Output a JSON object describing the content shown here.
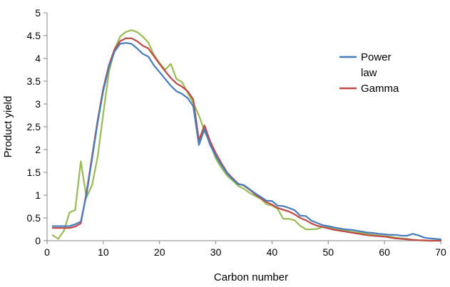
{
  "chart_data": {
    "type": "line",
    "title": "",
    "xlabel": "Carbon number",
    "ylabel": "Product yield",
    "xlim": [
      0,
      70
    ],
    "ylim": [
      0,
      5
    ],
    "x_ticks": [
      0,
      10,
      20,
      30,
      40,
      50,
      60,
      70
    ],
    "y_ticks": [
      0,
      0.5,
      1,
      1.5,
      2,
      2.5,
      3,
      3.5,
      4,
      4.5,
      5
    ],
    "grid": false,
    "legend_position": "right",
    "legend_entries": [
      {
        "name_lines": [
          "Power",
          "law"
        ],
        "color": "#4a7ebb"
      },
      {
        "name_lines": [
          "Gamma"
        ],
        "color": "#be4b48"
      }
    ],
    "series": [
      {
        "name": "Power law",
        "color": "#4a7ebb",
        "x": [
          1,
          2,
          3,
          4,
          5,
          6,
          7,
          8,
          9,
          10,
          11,
          12,
          13,
          14,
          15,
          16,
          17,
          18,
          19,
          20,
          21,
          22,
          23,
          24,
          25,
          26,
          27,
          28,
          29,
          30,
          31,
          32,
          33,
          34,
          35,
          36,
          37,
          38,
          39,
          40,
          41,
          42,
          43,
          44,
          45,
          46,
          47,
          48,
          49,
          50,
          51,
          52,
          53,
          54,
          55,
          56,
          57,
          58,
          59,
          60,
          61,
          62,
          63,
          64,
          65,
          66,
          67,
          68,
          69,
          70
        ],
        "y": [
          0.32,
          0.32,
          0.32,
          0.32,
          0.36,
          0.42,
          1.0,
          1.8,
          2.6,
          3.3,
          3.8,
          4.15,
          4.32,
          4.34,
          4.32,
          4.22,
          4.1,
          4.04,
          3.85,
          3.7,
          3.55,
          3.4,
          3.28,
          3.22,
          3.13,
          2.95,
          2.1,
          2.45,
          2.1,
          1.86,
          1.66,
          1.48,
          1.35,
          1.24,
          1.22,
          1.13,
          1.04,
          0.96,
          0.88,
          0.87,
          0.77,
          0.76,
          0.72,
          0.67,
          0.55,
          0.54,
          0.44,
          0.39,
          0.34,
          0.32,
          0.29,
          0.27,
          0.25,
          0.24,
          0.22,
          0.2,
          0.18,
          0.17,
          0.15,
          0.14,
          0.13,
          0.13,
          0.11,
          0.11,
          0.15,
          0.12,
          0.07,
          0.05,
          0.04,
          0.03
        ]
      },
      {
        "name": "Gamma",
        "color": "#be4b48",
        "x": [
          1,
          2,
          3,
          4,
          5,
          6,
          7,
          8,
          9,
          10,
          11,
          12,
          13,
          14,
          15,
          16,
          17,
          18,
          19,
          20,
          21,
          22,
          23,
          24,
          25,
          26,
          27,
          28,
          29,
          30,
          31,
          32,
          33,
          34,
          35,
          36,
          37,
          38,
          39,
          40,
          41,
          42,
          43,
          44,
          45,
          46,
          47,
          48,
          49,
          50,
          51,
          52,
          53,
          54,
          55,
          56,
          57,
          58,
          59,
          60,
          61,
          62,
          63,
          64,
          65,
          66,
          67,
          68,
          69,
          70
        ],
        "y": [
          0.28,
          0.28,
          0.28,
          0.28,
          0.31,
          0.38,
          1.05,
          1.85,
          2.65,
          3.35,
          3.85,
          4.2,
          4.38,
          4.44,
          4.44,
          4.38,
          4.28,
          4.22,
          4.05,
          3.88,
          3.72,
          3.57,
          3.45,
          3.38,
          3.28,
          3.1,
          2.2,
          2.53,
          2.18,
          1.92,
          1.7,
          1.5,
          1.37,
          1.25,
          1.21,
          1.12,
          1.02,
          0.93,
          0.85,
          0.79,
          0.72,
          0.68,
          0.64,
          0.58,
          0.5,
          0.45,
          0.38,
          0.33,
          0.3,
          0.27,
          0.24,
          0.22,
          0.2,
          0.18,
          0.16,
          0.14,
          0.12,
          0.11,
          0.1,
          0.09,
          0.07,
          0.05,
          0.04,
          0.03,
          0.02,
          0.01,
          0.01,
          0.0,
          0.0,
          0.0
        ]
      },
      {
        "name": "",
        "color": "#9bbb59",
        "x": [
          1,
          2,
          3,
          4,
          5,
          6,
          7,
          8,
          9,
          10,
          11,
          12,
          13,
          14,
          15,
          16,
          17,
          18,
          19,
          20,
          21,
          22,
          23,
          24,
          25,
          26,
          27,
          28,
          29,
          30,
          31,
          32,
          33,
          34,
          35,
          36,
          37,
          38,
          39,
          40,
          41,
          42,
          43,
          44,
          45,
          46,
          47,
          48,
          49,
          50,
          51,
          52,
          53,
          54,
          55,
          56,
          57,
          58,
          59,
          60,
          61,
          62,
          63,
          64,
          65,
          66,
          67,
          68,
          69,
          70
        ],
        "y": [
          0.12,
          0.04,
          0.22,
          0.62,
          0.67,
          1.74,
          0.95,
          1.22,
          1.85,
          2.8,
          3.7,
          4.2,
          4.48,
          4.58,
          4.62,
          4.58,
          4.48,
          4.35,
          4.08,
          3.9,
          3.75,
          3.88,
          3.55,
          3.48,
          3.25,
          3.02,
          2.75,
          2.4,
          2.14,
          1.8,
          1.6,
          1.43,
          1.32,
          1.2,
          1.14,
          1.05,
          0.98,
          0.92,
          0.8,
          0.77,
          0.7,
          0.48,
          0.48,
          0.45,
          0.33,
          0.25,
          0.25,
          0.26,
          0.3,
          0.3,
          0.27,
          0.24,
          0.22,
          0.2,
          0.18,
          0.17,
          0.15,
          0.13,
          0.11,
          0.1,
          0.09,
          0.07,
          0.05,
          0.04,
          0.02,
          0.01,
          0.0,
          0.0,
          0.0,
          0.0
        ]
      }
    ]
  }
}
